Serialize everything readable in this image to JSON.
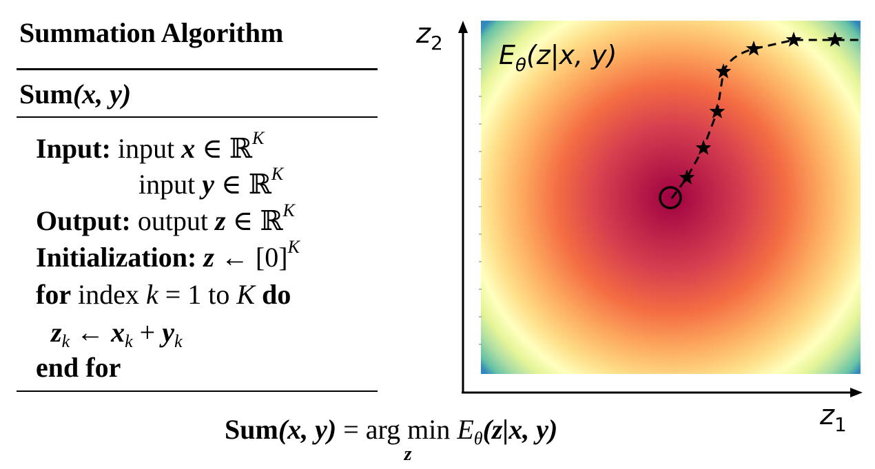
{
  "algorithm": {
    "title": "Summation Algorithm",
    "signature": {
      "name": "Sum",
      "args": "(x, y)"
    },
    "lines": [
      {
        "keyword": "Input:",
        "text": "input",
        "var": "x",
        "rel": "∈",
        "set": "ℝ",
        "sup": "K"
      },
      {
        "keyword": "",
        "text": "input",
        "var": "y",
        "rel": "∈",
        "set": "ℝ",
        "sup": "K"
      },
      {
        "keyword": "Output:",
        "text": "output",
        "var": "z",
        "rel": "∈",
        "set": "ℝ",
        "sup": "K"
      },
      {
        "keyword": "Initialization:",
        "var": "z",
        "rel": "←",
        "value": "[0]",
        "sup": "K"
      },
      {
        "keyword": "for",
        "text": "index",
        "var": "k",
        "rel": "=",
        "from": "1",
        "to_word": "to",
        "to": "K",
        "end_keyword": "do"
      },
      {
        "assign_lhs": "z",
        "lhs_sub": "k",
        "arrow": "←",
        "a": "x",
        "a_sub": "k",
        "plus": "+",
        "b": "y",
        "b_sub": "k"
      },
      {
        "keyword": "end for"
      }
    ]
  },
  "formula": {
    "lhs_name": "Sum",
    "lhs_args": "(x, y)",
    "equals": "=",
    "op": "arg min",
    "op_sub": "z",
    "energy": "E",
    "energy_sub": "θ",
    "energy_args": "(z|x, y)"
  },
  "plot": {
    "energy_label": {
      "base": "E",
      "sub": "θ",
      "args": "(z|x, y)"
    },
    "x_axis_label": {
      "base": "z",
      "sub": "1"
    },
    "y_axis_label": {
      "base": "z",
      "sub": "2"
    },
    "colormap": "Spectral",
    "colors": {
      "center": "#9e0142",
      "mid1": "#d53e4f",
      "mid2": "#f46d43",
      "mid3": "#fdae61",
      "mid4": "#fee08b",
      "ring": "#ffffbf",
      "outer1": "#e6f598",
      "outer2": "#abdda4",
      "outer3": "#66c2a5",
      "corner": "#3288bd"
    },
    "minimum_marker": "circle",
    "trajectory_marker": "star",
    "trajectory_line": "dashed"
  }
}
